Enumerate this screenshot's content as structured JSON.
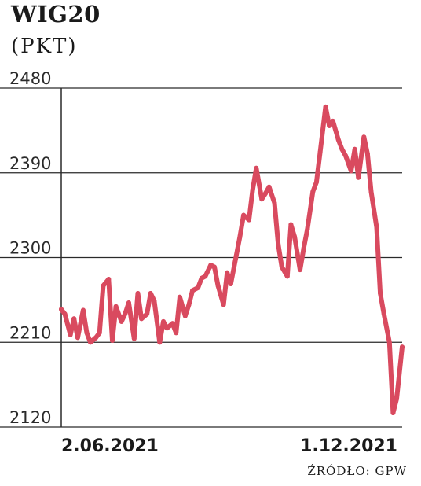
{
  "chart_data": {
    "type": "line",
    "title": "WIG20",
    "unit": "(PKT)",
    "source": "ŹRÓDŁO: GPW",
    "yticks": [
      "2480",
      "2390",
      "2300",
      "2210",
      "2120"
    ],
    "ylim": [
      2120,
      2480
    ],
    "xtick_labels": [
      "2.06.2021",
      "1.12.2021"
    ],
    "xlim": [
      "2021-06-02",
      "2021-12-06"
    ],
    "grid": true,
    "color": "#d94a5f",
    "series": [
      {
        "x": [
          "2021-06-02",
          "2021-06-04",
          "2021-06-07",
          "2021-06-09",
          "2021-06-11",
          "2021-06-14",
          "2021-06-16",
          "2021-06-18",
          "2021-06-21",
          "2021-06-23",
          "2021-06-25",
          "2021-06-28",
          "2021-06-30",
          "2021-07-02",
          "2021-07-05",
          "2021-07-07",
          "2021-07-09",
          "2021-07-12",
          "2021-07-14",
          "2021-07-16",
          "2021-07-19",
          "2021-07-21",
          "2021-07-23",
          "2021-07-26",
          "2021-07-28",
          "2021-07-30",
          "2021-08-02",
          "2021-08-04",
          "2021-08-06",
          "2021-08-09",
          "2021-08-11",
          "2021-08-13",
          "2021-08-16",
          "2021-08-18",
          "2021-08-20",
          "2021-08-23",
          "2021-08-25",
          "2021-08-27",
          "2021-08-30",
          "2021-09-01",
          "2021-09-03",
          "2021-09-06",
          "2021-09-08",
          "2021-09-10",
          "2021-09-13",
          "2021-09-15",
          "2021-09-17",
          "2021-09-20",
          "2021-09-22",
          "2021-09-24",
          "2021-09-27",
          "2021-09-29",
          "2021-10-01",
          "2021-10-04",
          "2021-10-06",
          "2021-10-08",
          "2021-10-11",
          "2021-10-13",
          "2021-10-15",
          "2021-10-18",
          "2021-10-20",
          "2021-10-22",
          "2021-10-25",
          "2021-10-27",
          "2021-10-29",
          "2021-11-01",
          "2021-11-03",
          "2021-11-05",
          "2021-11-08",
          "2021-11-10",
          "2021-11-12",
          "2021-11-15",
          "2021-11-17",
          "2021-11-19",
          "2021-11-22",
          "2021-11-24",
          "2021-11-26",
          "2021-11-29",
          "2021-12-01",
          "2021-12-03",
          "2021-12-06"
        ],
        "y": [
          2245,
          2240,
          2218,
          2235,
          2215,
          2244,
          2220,
          2210,
          2215,
          2220,
          2270,
          2277,
          2212,
          2248,
          2232,
          2240,
          2252,
          2214,
          2262,
          2235,
          2240,
          2262,
          2254,
          2210,
          2232,
          2225,
          2230,
          2220,
          2258,
          2238,
          2250,
          2265,
          2268,
          2278,
          2280,
          2292,
          2290,
          2270,
          2250,
          2284,
          2272,
          2302,
          2322,
          2345,
          2340,
          2372,
          2395,
          2362,
          2368,
          2375,
          2358,
          2314,
          2290,
          2280,
          2335,
          2322,
          2287,
          2310,
          2330,
          2370,
          2380,
          2412,
          2460,
          2440,
          2445,
          2425,
          2415,
          2408,
          2392,
          2415,
          2385,
          2428,
          2410,
          2370,
          2332,
          2262,
          2240,
          2210,
          2135,
          2150,
          2205
        ]
      }
    ]
  }
}
